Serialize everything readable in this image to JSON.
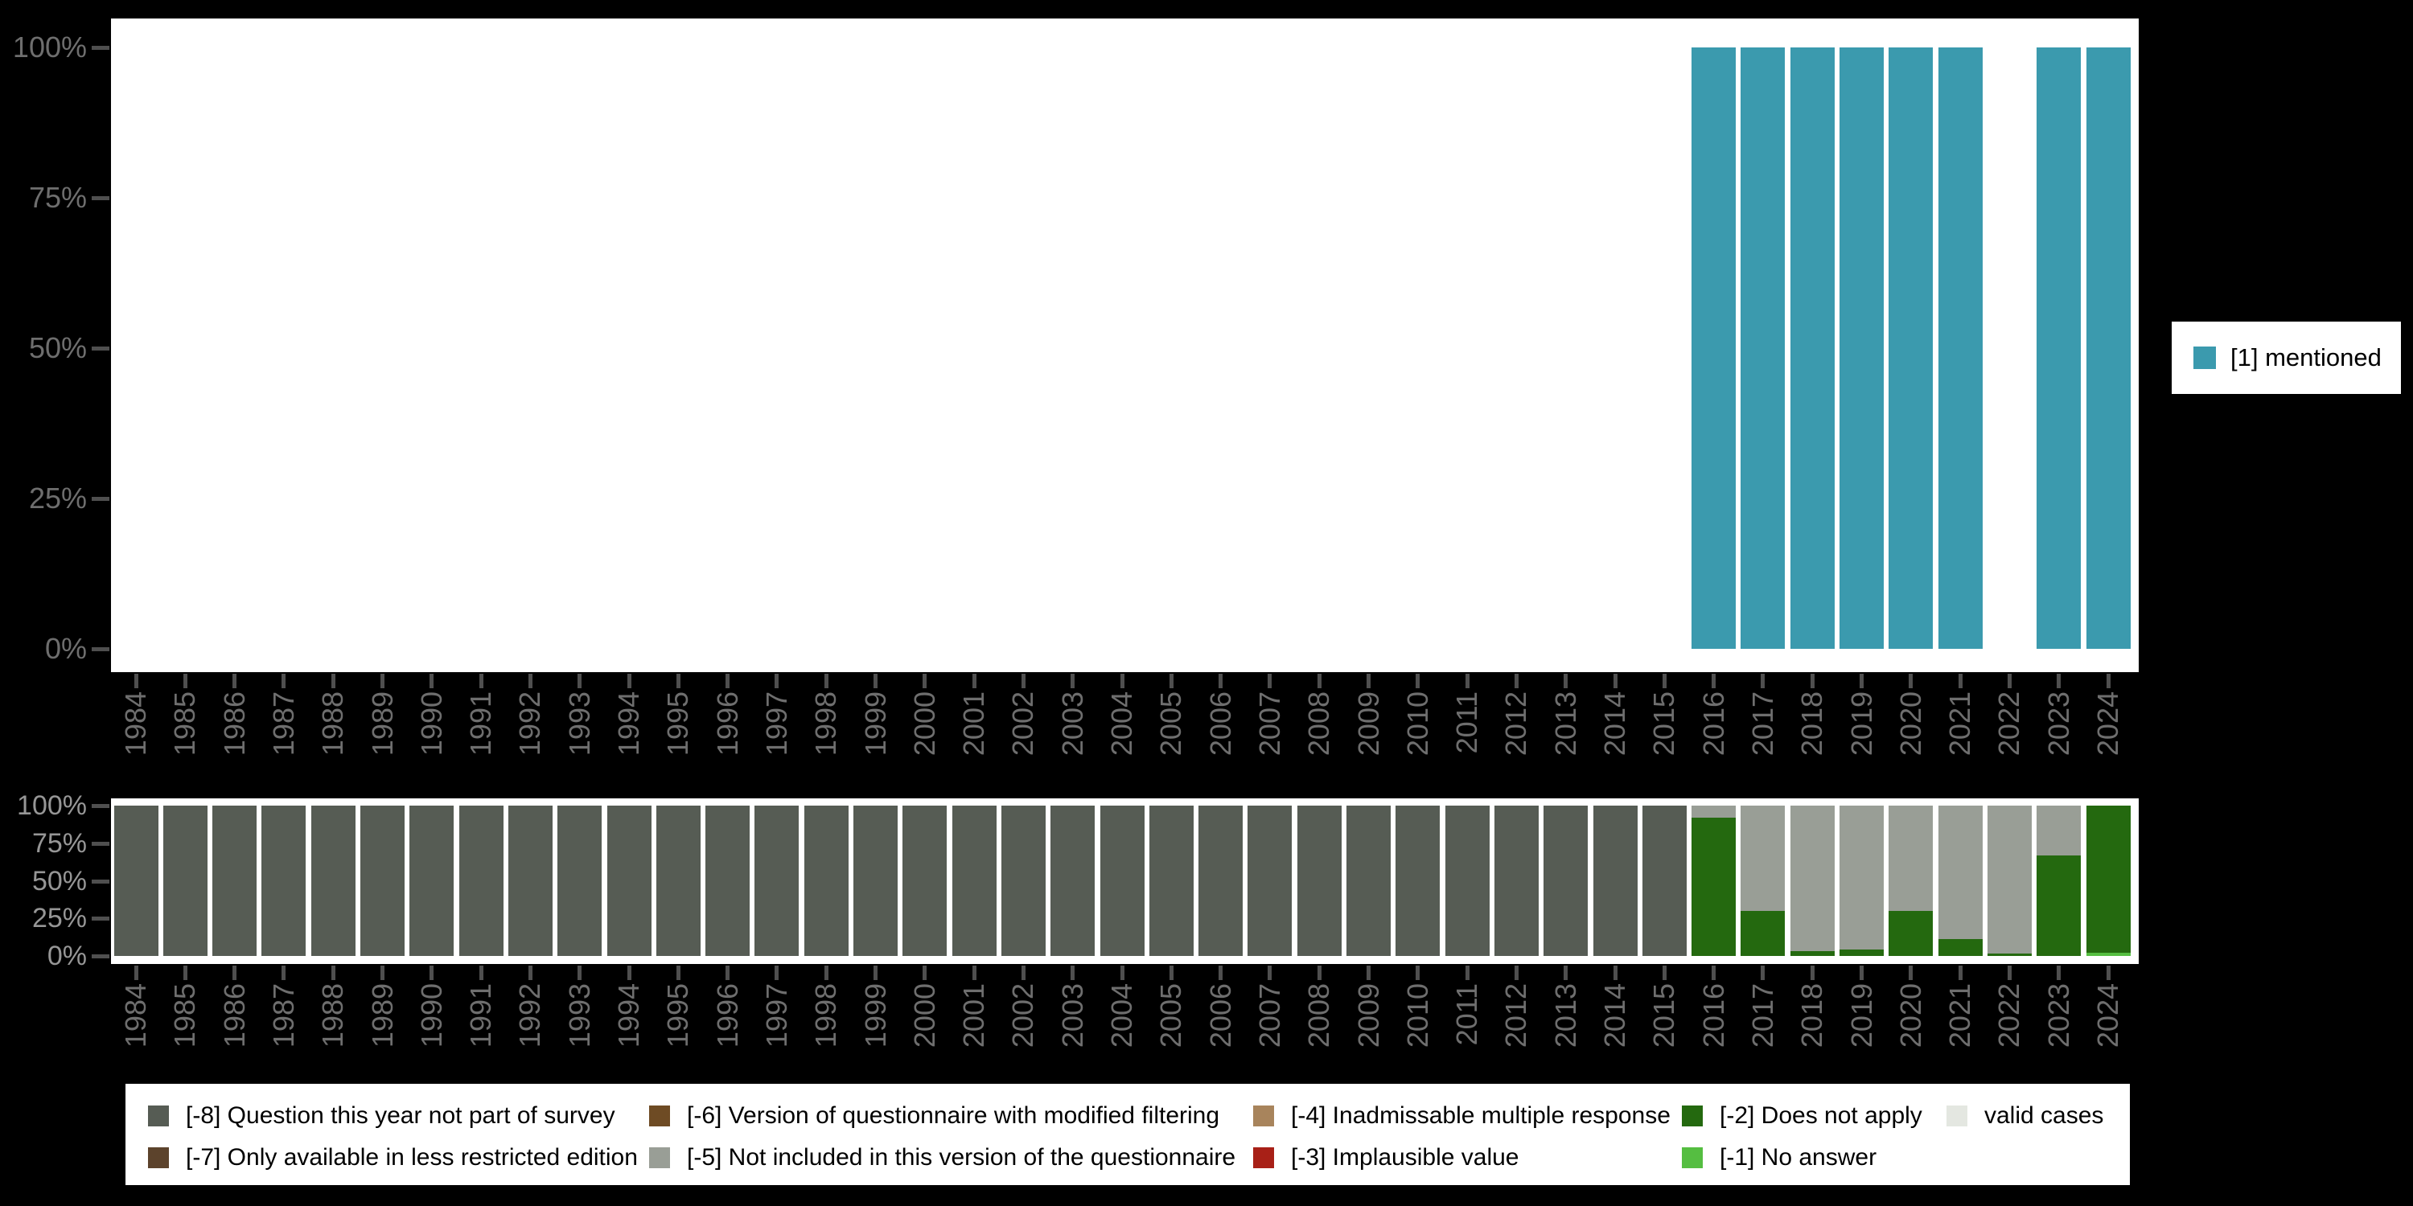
{
  "colors": {
    "background": "#000000",
    "plot_background": "#ffffff",
    "axis_tick": "#4f4f4f",
    "axis_label_top": "#6e6e6e",
    "axis_label_bottom": "#969696",
    "mentioned": "#3b9aae",
    "valid": "#e4e7e1",
    "-1": "#55be41",
    "-2": "#24690f",
    "-3": "#a82017",
    "-4": "#a8845c",
    "-5": "#999e96",
    "-6": "#6e4b24",
    "-7": "#5c432c",
    "-8": "#565c54"
  },
  "years": [
    "1984",
    "1985",
    "1986",
    "1987",
    "1988",
    "1989",
    "1990",
    "1991",
    "1992",
    "1993",
    "1994",
    "1995",
    "1996",
    "1997",
    "1998",
    "1999",
    "2000",
    "2001",
    "2002",
    "2003",
    "2004",
    "2005",
    "2006",
    "2007",
    "2008",
    "2009",
    "2010",
    "2011",
    "2012",
    "2013",
    "2014",
    "2015",
    "2016",
    "2017",
    "2018",
    "2019",
    "2020",
    "2021",
    "2022",
    "2023",
    "2024"
  ],
  "top_chart": {
    "y_ticks": [
      "100%",
      "75%",
      "50%",
      "25%",
      "0%"
    ]
  },
  "bottom_chart": {
    "y_ticks": [
      "100%",
      "75%",
      "50%",
      "25%",
      "0%"
    ]
  },
  "top_legend": {
    "label": "[1] mentioned",
    "color_code": "mentioned"
  },
  "bottom_legend": {
    "items": [
      {
        "code": "-8",
        "label": "[-8] Question this year not part of survey",
        "row": 0,
        "col": 0
      },
      {
        "code": "-6",
        "label": "[-6] Version of questionnaire with modified filtering",
        "row": 0,
        "col": 1
      },
      {
        "code": "-4",
        "label": "[-4] Inadmissable multiple response",
        "row": 0,
        "col": 2
      },
      {
        "code": "-2",
        "label": "[-2] Does not apply",
        "row": 0,
        "col": 3
      },
      {
        "code": "valid",
        "label": "valid cases",
        "row": 0,
        "col": 4
      },
      {
        "code": "-7",
        "label": "[-7] Only available in less restricted edition",
        "row": 1,
        "col": 0
      },
      {
        "code": "-5",
        "label": "[-5] Not included in this version of the questionnaire",
        "row": 1,
        "col": 1
      },
      {
        "code": "-3",
        "label": "[-3] Implausible value",
        "row": 1,
        "col": 2
      },
      {
        "code": "-1",
        "label": "[-1] No answer",
        "row": 1,
        "col": 3
      }
    ]
  },
  "chart_data": [
    {
      "type": "bar",
      "title": "",
      "xlabel": "",
      "ylabel": "",
      "ylim": [
        0,
        100
      ],
      "y_ticks": [
        "0%",
        "25%",
        "50%",
        "75%",
        "100%"
      ],
      "grid": false,
      "legend_position": "right",
      "categories": [
        "1984",
        "1985",
        "1986",
        "1987",
        "1988",
        "1989",
        "1990",
        "1991",
        "1992",
        "1993",
        "1994",
        "1995",
        "1996",
        "1997",
        "1998",
        "1999",
        "2000",
        "2001",
        "2002",
        "2003",
        "2004",
        "2005",
        "2006",
        "2007",
        "2008",
        "2009",
        "2010",
        "2011",
        "2012",
        "2013",
        "2014",
        "2015",
        "2016",
        "2017",
        "2018",
        "2019",
        "2020",
        "2021",
        "2022",
        "2023",
        "2024"
      ],
      "series": [
        {
          "name": "[1] mentioned",
          "code": "mentioned",
          "values": [
            null,
            null,
            null,
            null,
            null,
            null,
            null,
            null,
            null,
            null,
            null,
            null,
            null,
            null,
            null,
            null,
            null,
            null,
            null,
            null,
            null,
            null,
            null,
            null,
            null,
            null,
            null,
            null,
            null,
            null,
            null,
            null,
            100,
            100,
            100,
            100,
            100,
            100,
            null,
            100,
            100
          ]
        }
      ]
    },
    {
      "type": "bar",
      "stacked": true,
      "title": "",
      "xlabel": "",
      "ylabel": "",
      "ylim": [
        0,
        100
      ],
      "y_ticks": [
        "0%",
        "25%",
        "50%",
        "75%",
        "100%"
      ],
      "grid": false,
      "legend_position": "bottom",
      "categories": [
        "1984",
        "1985",
        "1986",
        "1987",
        "1988",
        "1989",
        "1990",
        "1991",
        "1992",
        "1993",
        "1994",
        "1995",
        "1996",
        "1997",
        "1998",
        "1999",
        "2000",
        "2001",
        "2002",
        "2003",
        "2004",
        "2005",
        "2006",
        "2007",
        "2008",
        "2009",
        "2010",
        "2011",
        "2012",
        "2013",
        "2014",
        "2015",
        "2016",
        "2017",
        "2018",
        "2019",
        "2020",
        "2021",
        "2022",
        "2023",
        "2024"
      ],
      "series": [
        {
          "name": "valid cases",
          "code": "valid",
          "values": [
            0,
            0,
            0,
            0,
            0,
            0,
            0,
            0,
            0,
            0,
            0,
            0,
            0,
            0,
            0,
            0,
            0,
            0,
            0,
            0,
            0,
            0,
            0,
            0,
            0,
            0,
            0,
            0,
            0,
            0,
            0,
            0,
            0,
            0,
            0,
            0,
            0,
            0,
            0,
            0,
            0
          ]
        },
        {
          "name": "[-1] No answer",
          "code": "-1",
          "values": [
            0,
            0,
            0,
            0,
            0,
            0,
            0,
            0,
            0,
            0,
            0,
            0,
            0,
            0,
            0,
            0,
            0,
            0,
            0,
            0,
            0,
            0,
            0,
            0,
            0,
            0,
            0,
            0,
            0,
            0,
            0,
            0,
            0,
            0,
            0,
            0,
            0,
            0,
            0,
            0,
            2
          ]
        },
        {
          "name": "[-2] Does not apply",
          "code": "-2",
          "values": [
            0,
            0,
            0,
            0,
            0,
            0,
            0,
            0,
            0,
            0,
            0,
            0,
            0,
            0,
            0,
            0,
            0,
            0,
            0,
            0,
            0,
            0,
            0,
            0,
            0,
            0,
            0,
            0,
            0,
            0,
            0,
            0,
            92,
            30,
            3,
            4.5,
            30,
            11,
            1.5,
            67,
            98
          ]
        },
        {
          "name": "[-3] Implausible value",
          "code": "-3",
          "values": [
            0,
            0,
            0,
            0,
            0,
            0,
            0,
            0,
            0,
            0,
            0,
            0,
            0,
            0,
            0,
            0,
            0,
            0,
            0,
            0,
            0,
            0,
            0,
            0,
            0,
            0,
            0,
            0,
            0,
            0,
            0,
            0,
            0,
            0,
            0,
            0,
            0,
            0,
            0,
            0,
            0
          ]
        },
        {
          "name": "[-4] Inadmissable multiple response",
          "code": "-4",
          "values": [
            0,
            0,
            0,
            0,
            0,
            0,
            0,
            0,
            0,
            0,
            0,
            0,
            0,
            0,
            0,
            0,
            0,
            0,
            0,
            0,
            0,
            0,
            0,
            0,
            0,
            0,
            0,
            0,
            0,
            0,
            0,
            0,
            0,
            0,
            0,
            0,
            0,
            0,
            0,
            0,
            0
          ]
        },
        {
          "name": "[-5] Not included in this version of the questionnaire",
          "code": "-5",
          "values": [
            0,
            0,
            0,
            0,
            0,
            0,
            0,
            0,
            0,
            0,
            0,
            0,
            0,
            0,
            0,
            0,
            0,
            0,
            0,
            0,
            0,
            0,
            0,
            0,
            0,
            0,
            0,
            0,
            0,
            0,
            0,
            0,
            8,
            70,
            97,
            95.5,
            70,
            89,
            98.5,
            33,
            0
          ]
        },
        {
          "name": "[-6] Version of questionnaire with modified filtering",
          "code": "-6",
          "values": [
            0,
            0,
            0,
            0,
            0,
            0,
            0,
            0,
            0,
            0,
            0,
            0,
            0,
            0,
            0,
            0,
            0,
            0,
            0,
            0,
            0,
            0,
            0,
            0,
            0,
            0,
            0,
            0,
            0,
            0,
            0,
            0,
            0,
            0,
            0,
            0,
            0,
            0,
            0,
            0,
            0
          ]
        },
        {
          "name": "[-7] Only available in less restricted edition",
          "code": "-7",
          "values": [
            0,
            0,
            0,
            0,
            0,
            0,
            0,
            0,
            0,
            0,
            0,
            0,
            0,
            0,
            0,
            0,
            0,
            0,
            0,
            0,
            0,
            0,
            0,
            0,
            0,
            0,
            0,
            0,
            0,
            0,
            0,
            0,
            0,
            0,
            0,
            0,
            0,
            0,
            0,
            0,
            0
          ]
        },
        {
          "name": "[-8] Question this year not part of survey",
          "code": "-8",
          "values": [
            100,
            100,
            100,
            100,
            100,
            100,
            100,
            100,
            100,
            100,
            100,
            100,
            100,
            100,
            100,
            100,
            100,
            100,
            100,
            100,
            100,
            100,
            100,
            100,
            100,
            100,
            100,
            100,
            100,
            100,
            100,
            100,
            0,
            0,
            0,
            0,
            0,
            0,
            0,
            0,
            0
          ]
        }
      ]
    }
  ]
}
